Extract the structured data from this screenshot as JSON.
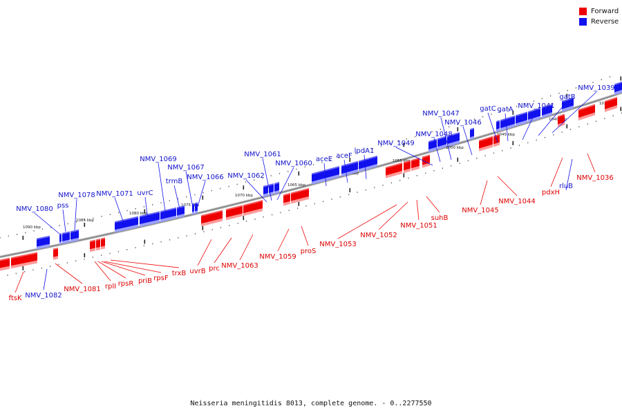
{
  "caption": "Neisseria meningitidis 8013, complete genome. - 0..2277550",
  "legend": [
    {
      "label": "Forward",
      "color": "#ee0000"
    },
    {
      "label": "Reverse",
      "color": "#1111ee"
    }
  ],
  "colors": {
    "forward": "#ee0000",
    "reverse": "#1111ee",
    "backbone": "#888888"
  },
  "scale_labels": [
    "1090 kbp",
    "1085 kbp",
    "1080 kbp",
    "1075 kbp",
    "1070 kbp",
    "1065 kbp",
    "1060 kbp",
    "1055 kbp",
    "1050 kbp",
    "1045 kbp",
    "1040 kbp",
    "1035 kbp"
  ],
  "forward_genes": [
    "ftsK",
    "NMV_1081",
    "rplI",
    "rpsR",
    "priB",
    "rpsF",
    "trxB",
    "uvrB",
    "prc",
    "NMV_1063",
    "NMV_1059",
    "proS",
    "NMV_1053",
    "NMV_1052",
    "NMV_1051",
    "suhB",
    "NMV_1045",
    "NMV_1044",
    "pdxH",
    "NMV_1036"
  ],
  "reverse_genes": [
    "NMV_1082",
    "NMV_1080",
    "pss",
    "NMV_1078",
    "NMV_1071",
    "uvrC",
    "NMV_1069",
    "trmB",
    "NMV_1067",
    "NMV_1066",
    "NMV_1062",
    "NMV_1061",
    "NMV_1060",
    "aceE",
    "aceF",
    "lpdA1",
    "NMV_1049",
    "NMV_1048",
    "NMV_1047",
    "NMV_1046",
    "gatC",
    "gatA",
    "NMV_1041",
    "gatB",
    "NMV_1039",
    "rluB"
  ]
}
